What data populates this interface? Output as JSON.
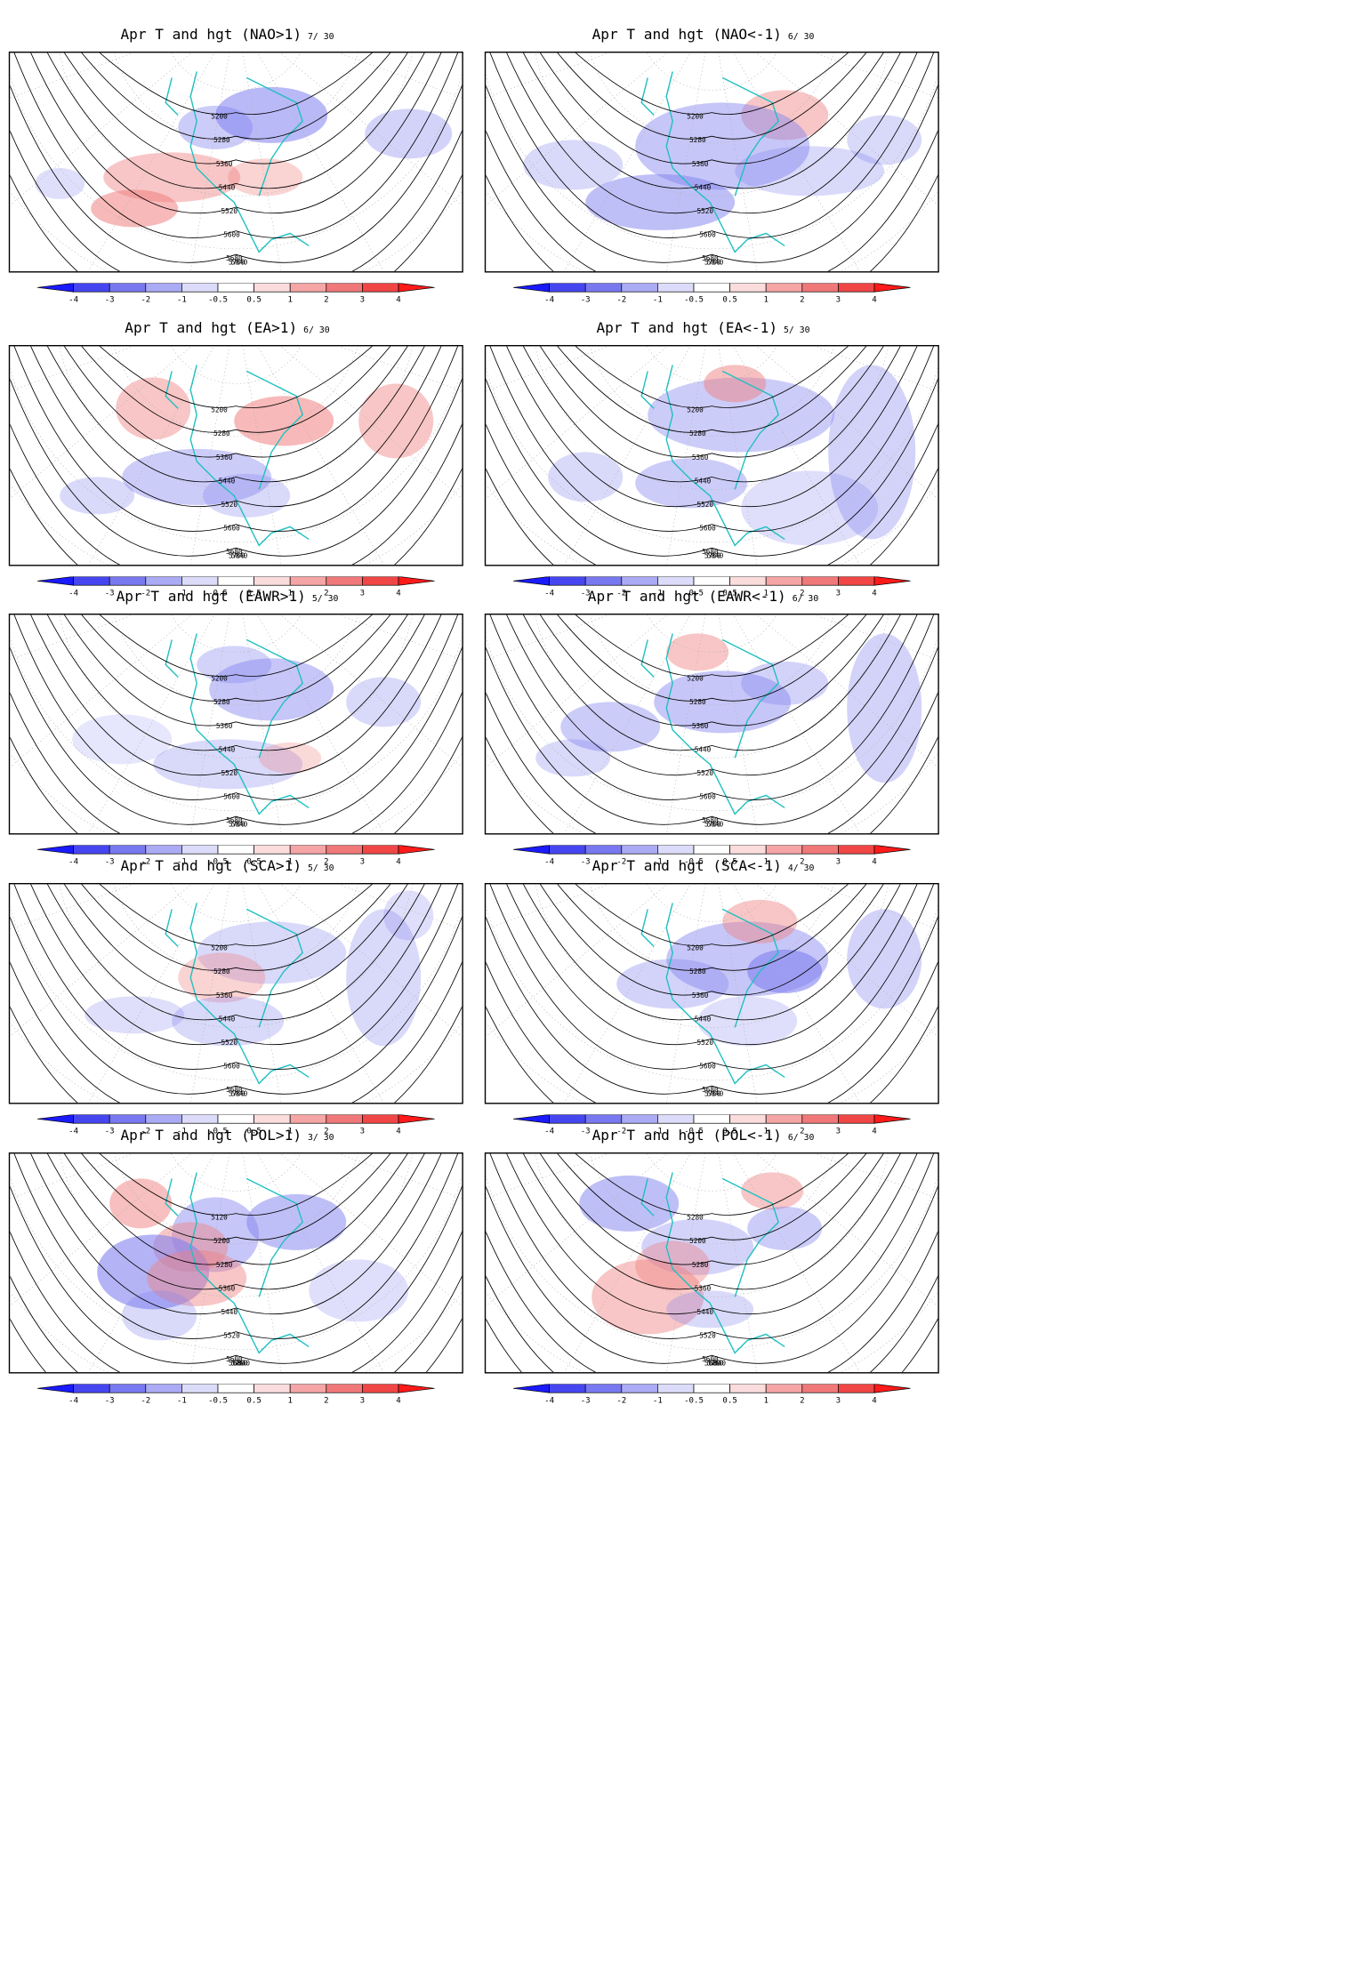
{
  "panels": [
    {
      "title": "Apr T and hgt (NAO>1)",
      "count": "7/ 30",
      "contours": [
        "5200",
        "5280",
        "5360",
        "5440",
        "5520",
        "5600",
        "5680",
        "5760",
        "5840"
      ]
    },
    {
      "title": "Apr T and hgt (NAO<-1)",
      "count": "6/ 30",
      "contours": [
        "5200",
        "5280",
        "5360",
        "5440",
        "5520",
        "5600",
        "5680",
        "5760",
        "5840"
      ]
    },
    {
      "title": "Apr T and hgt (EA>1)",
      "count": "6/ 30",
      "contours": [
        "5200",
        "5280",
        "5360",
        "5440",
        "5520",
        "5600",
        "5680",
        "5760",
        "5840"
      ]
    },
    {
      "title": "Apr T and hgt (EA<-1)",
      "count": "5/ 30",
      "contours": [
        "5200",
        "5280",
        "5360",
        "5440",
        "5520",
        "5600",
        "5680",
        "5760",
        "5840"
      ]
    },
    {
      "title": "Apr T and hgt (EAWR>1)",
      "count": "5/ 30",
      "contours": [
        "5200",
        "5280",
        "5360",
        "5440",
        "5520",
        "5600",
        "5680",
        "5760",
        "5840"
      ]
    },
    {
      "title": "Apr T and hgt (EAWR<-1)",
      "count": "6/ 30",
      "contours": [
        "5200",
        "5280",
        "5360",
        "5440",
        "5520",
        "5600",
        "5680",
        "5760",
        "5840"
      ]
    },
    {
      "title": "Apr T and hgt (SCA>1)",
      "count": "5/ 30",
      "contours": [
        "5200",
        "5280",
        "5360",
        "5440",
        "5520",
        "5600",
        "5680",
        "5760",
        "5840"
      ]
    },
    {
      "title": "Apr T and hgt (SCA<-1)",
      "count": "4/ 30",
      "contours": [
        "5200",
        "5280",
        "5360",
        "5440",
        "5520",
        "5600",
        "5680",
        "5760",
        "5840"
      ]
    },
    {
      "title": "Apr T and hgt (POL>1)",
      "count": "3/ 30",
      "contours": [
        "5120",
        "5200",
        "5280",
        "5360",
        "5440",
        "5520",
        "5600",
        "5680",
        "5760",
        "5840"
      ]
    },
    {
      "title": "Apr T and hgt (POL<-1)",
      "count": "6/ 30",
      "contours": [
        "5280",
        "5200",
        "5280",
        "5360",
        "5440",
        "5520",
        "5600",
        "5680",
        "5760",
        "5840"
      ]
    }
  ],
  "colorbar": {
    "labels": [
      "-4",
      "-3",
      "-2",
      "-1",
      "-0.5",
      "0.5",
      "1",
      "2",
      "3",
      "4"
    ],
    "colors": [
      "#1a1aff",
      "#4646f0",
      "#7878f0",
      "#aaaaf5",
      "#dcdcfa",
      "#ffffff",
      "#fadcdc",
      "#f5a5a5",
      "#f07878",
      "#f04646",
      "#ff1a1a"
    ]
  },
  "colors": {
    "coastline": "#20c0c0",
    "contour": "#000000",
    "warm": "#f08080",
    "cold": "#8080f0"
  }
}
